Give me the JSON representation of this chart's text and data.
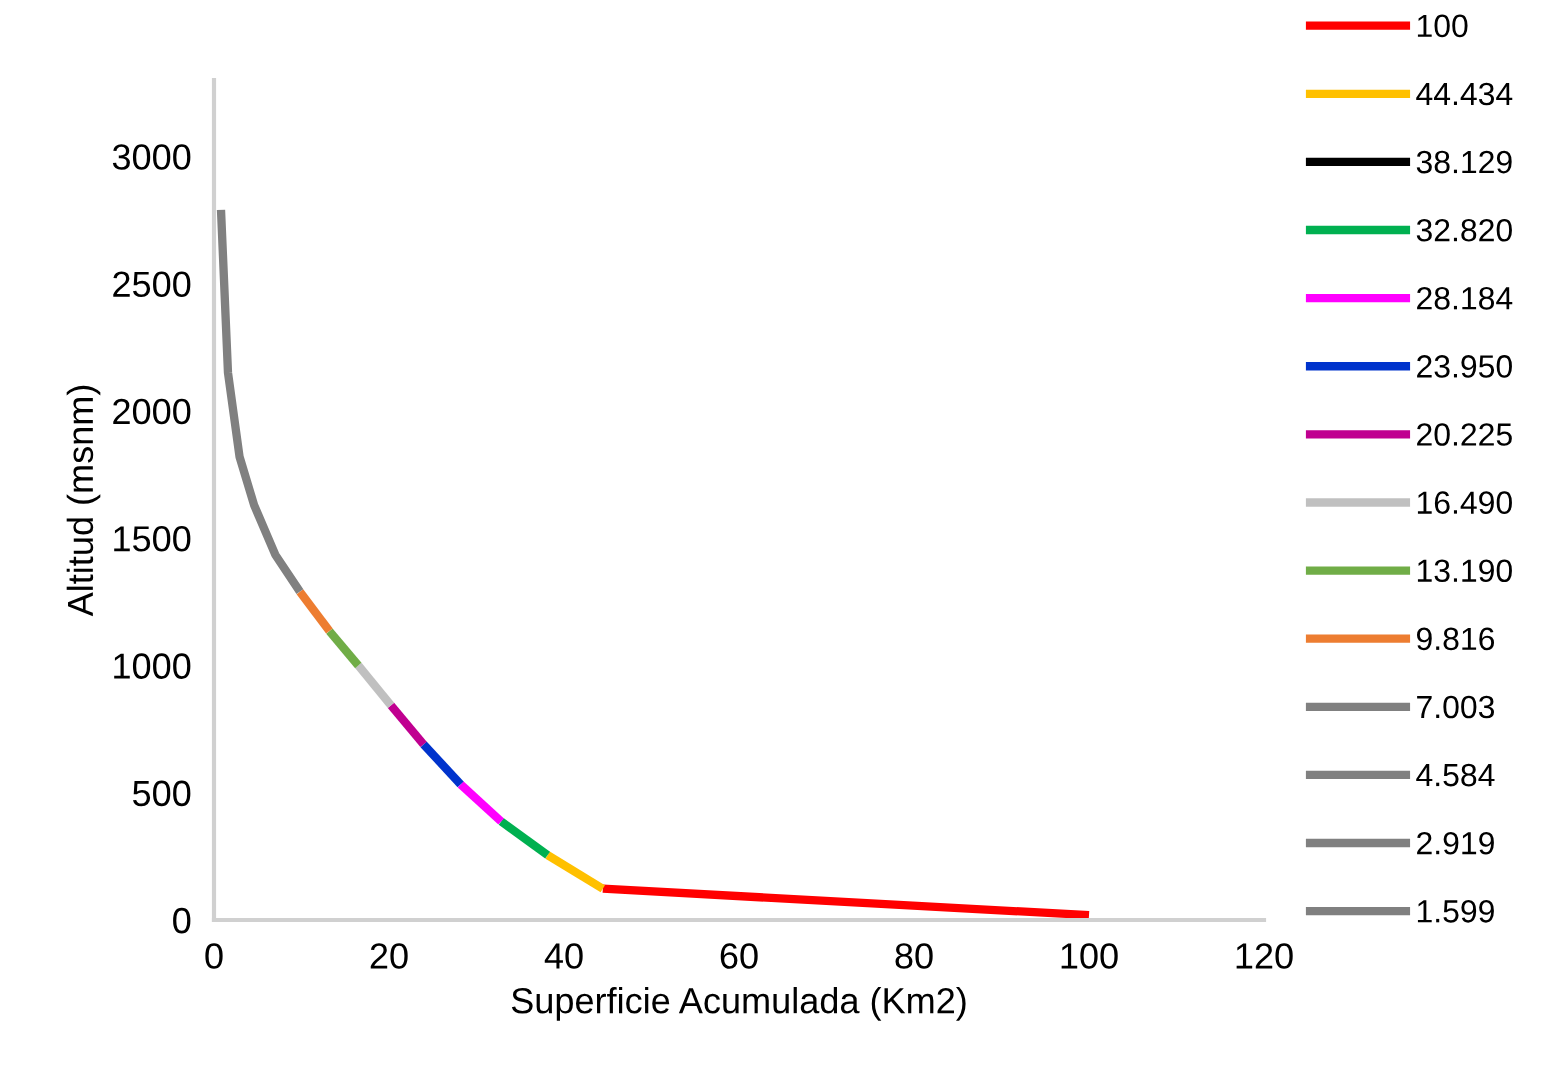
{
  "chart_data": {
    "type": "line",
    "xlabel": "Superficie Acumulada (Km2)",
    "ylabel": "Altitud (msnm)",
    "xlim": [
      0,
      120
    ],
    "xticks": [
      0,
      20,
      40,
      60,
      80,
      100,
      120
    ],
    "ylim": [
      0,
      3300
    ],
    "yticks": [
      0,
      500,
      1000,
      1500,
      2000,
      2500,
      3000
    ],
    "grid": false,
    "legend": "right",
    "marker": "none",
    "line_style": "solid",
    "series": [
      {
        "name": "100",
        "color": "#ff0000",
        "x": [
          44.434,
          100
        ],
        "values": [
          123,
          19
        ]
      },
      {
        "name": "44.434",
        "color": "#ffc000",
        "x": [
          38.129,
          44.434
        ],
        "values": [
          255,
          123
        ]
      },
      {
        "name": "38.129",
        "color": "#000000"
      },
      {
        "name": "32.820",
        "color": "#00b050",
        "x": [
          32.82,
          38.129
        ],
        "values": [
          387,
          255
        ]
      },
      {
        "name": "28.184",
        "color": "#ff00ff",
        "x": [
          28.184,
          32.82
        ],
        "values": [
          533,
          387
        ]
      },
      {
        "name": "23.950",
        "color": "#0033cc",
        "x": [
          23.95,
          28.184
        ],
        "values": [
          690,
          533
        ]
      },
      {
        "name": "20.225",
        "color": "#c00090",
        "x": [
          20.225,
          23.95
        ],
        "values": [
          843,
          690
        ]
      },
      {
        "name": "16.490",
        "color": "#c0c0c0",
        "x": [
          16.49,
          20.225
        ],
        "values": [
          1000,
          843
        ]
      },
      {
        "name": "13.190",
        "color": "#70ad47",
        "x": [
          13.19,
          16.49
        ],
        "values": [
          1135,
          1000
        ]
      },
      {
        "name": "9.816",
        "color": "#ed7d31",
        "x": [
          9.816,
          13.19
        ],
        "values": [
          1290,
          1135
        ]
      },
      {
        "name": "7.003",
        "color": "#808080"
      },
      {
        "name": "4.584",
        "color": "#808080"
      },
      {
        "name": "2.919",
        "color": "#808080"
      },
      {
        "name": "1.599",
        "color": "#808080",
        "x": [
          0.8,
          1.599,
          2.919,
          4.584,
          7.003,
          9.816
        ],
        "values": [
          2790,
          2150,
          1820,
          1630,
          1435,
          1290
        ]
      }
    ]
  }
}
